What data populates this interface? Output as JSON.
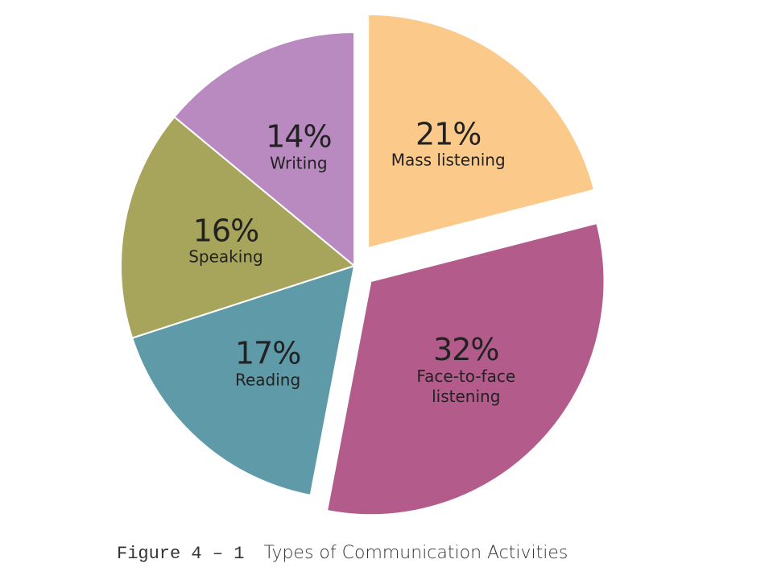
{
  "chart_data": {
    "type": "pie",
    "title": "Types of Communication Activities",
    "figure_label": "Figure 4 – 1",
    "categories": [
      "Mass listening",
      "Face-to-face listening",
      "Reading",
      "Speaking",
      "Writing"
    ],
    "values": [
      21,
      32,
      17,
      16,
      14
    ],
    "value_labels": [
      "21%",
      "32%",
      "17%",
      "16%",
      "14%"
    ],
    "colors": [
      "#fbc98a",
      "#b35b8a",
      "#5f9aa8",
      "#a7a55b",
      "#b98ac0"
    ]
  }
}
